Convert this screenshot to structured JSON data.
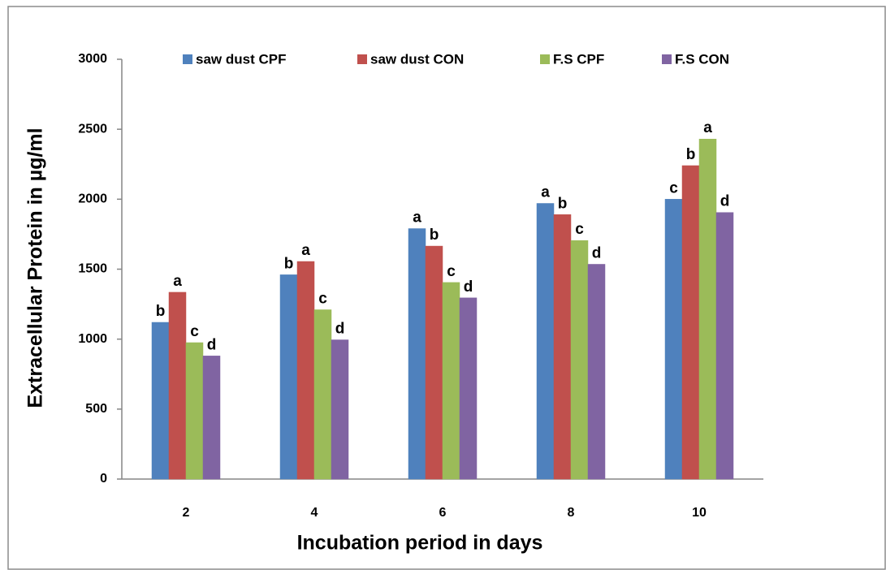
{
  "chart_data": {
    "type": "bar",
    "x_label": "Incubation period in days",
    "y_label": "Extracellular Protein in µg/ml",
    "categories": [
      "2",
      "4",
      "6",
      "8",
      "10"
    ],
    "series": [
      {
        "name": "saw dust CPF",
        "color": "#4f81bd",
        "values": [
          1120,
          1460,
          1790,
          1970,
          2000
        ],
        "letters": [
          "b",
          "b",
          "a",
          "a",
          "c"
        ]
      },
      {
        "name": "saw dust CON",
        "color": "#c0504d",
        "values": [
          1335,
          1555,
          1665,
          1890,
          2240
        ],
        "letters": [
          "a",
          "a",
          "b",
          "b",
          "b"
        ]
      },
      {
        "name": "F.S CPF",
        "color": "#9bbb59",
        "values": [
          975,
          1210,
          1405,
          1705,
          2430
        ],
        "letters": [
          "c",
          "c",
          "c",
          "c",
          "a"
        ]
      },
      {
        "name": "F.S CON",
        "color": "#8064a2",
        "values": [
          880,
          995,
          1295,
          1535,
          1905
        ],
        "letters": [
          "d",
          "d",
          "d",
          "d",
          "d"
        ]
      }
    ],
    "ylim": [
      0,
      3000
    ],
    "yticks": [
      0,
      500,
      1000,
      1500,
      2000,
      2500,
      3000
    ],
    "grid": false
  }
}
